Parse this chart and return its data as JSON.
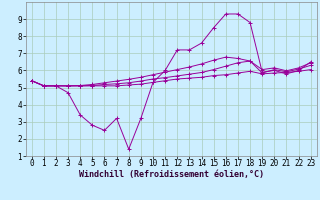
{
  "bg_color": "#cceeff",
  "line_color": "#990099",
  "grid_color": "#aaccbb",
  "xlabel": "Windchill (Refroidissement éolien,°C)",
  "xlabel_fontsize": 6.0,
  "tick_fontsize": 5.5,
  "xlim": [
    -0.5,
    23.5
  ],
  "ylim": [
    1,
    10
  ],
  "xticks": [
    0,
    1,
    2,
    3,
    4,
    5,
    6,
    7,
    8,
    9,
    10,
    11,
    12,
    13,
    14,
    15,
    16,
    17,
    18,
    19,
    20,
    21,
    22,
    23
  ],
  "yticks": [
    1,
    2,
    3,
    4,
    5,
    6,
    7,
    8,
    9
  ],
  "series": [
    [
      5.4,
      5.1,
      5.1,
      4.7,
      3.4,
      2.8,
      2.5,
      3.2,
      1.4,
      3.2,
      5.3,
      6.0,
      7.2,
      7.2,
      7.6,
      8.5,
      9.3,
      9.3,
      8.8,
      5.9,
      6.0,
      5.8,
      6.0,
      6.5
    ],
    [
      5.4,
      5.1,
      5.1,
      5.1,
      5.1,
      5.1,
      5.1,
      5.1,
      5.15,
      5.2,
      5.3,
      5.4,
      5.5,
      5.55,
      5.6,
      5.7,
      5.75,
      5.85,
      5.95,
      5.8,
      5.85,
      5.88,
      5.95,
      6.05
    ],
    [
      5.4,
      5.1,
      5.1,
      5.1,
      5.1,
      5.12,
      5.18,
      5.22,
      5.28,
      5.38,
      5.5,
      5.58,
      5.68,
      5.78,
      5.88,
      6.05,
      6.25,
      6.45,
      6.55,
      5.85,
      6.05,
      5.92,
      6.08,
      6.3
    ],
    [
      5.4,
      5.1,
      5.1,
      5.1,
      5.12,
      5.18,
      5.28,
      5.38,
      5.48,
      5.6,
      5.75,
      5.9,
      6.05,
      6.2,
      6.38,
      6.6,
      6.78,
      6.7,
      6.55,
      6.05,
      6.15,
      5.98,
      6.15,
      6.45
    ]
  ]
}
